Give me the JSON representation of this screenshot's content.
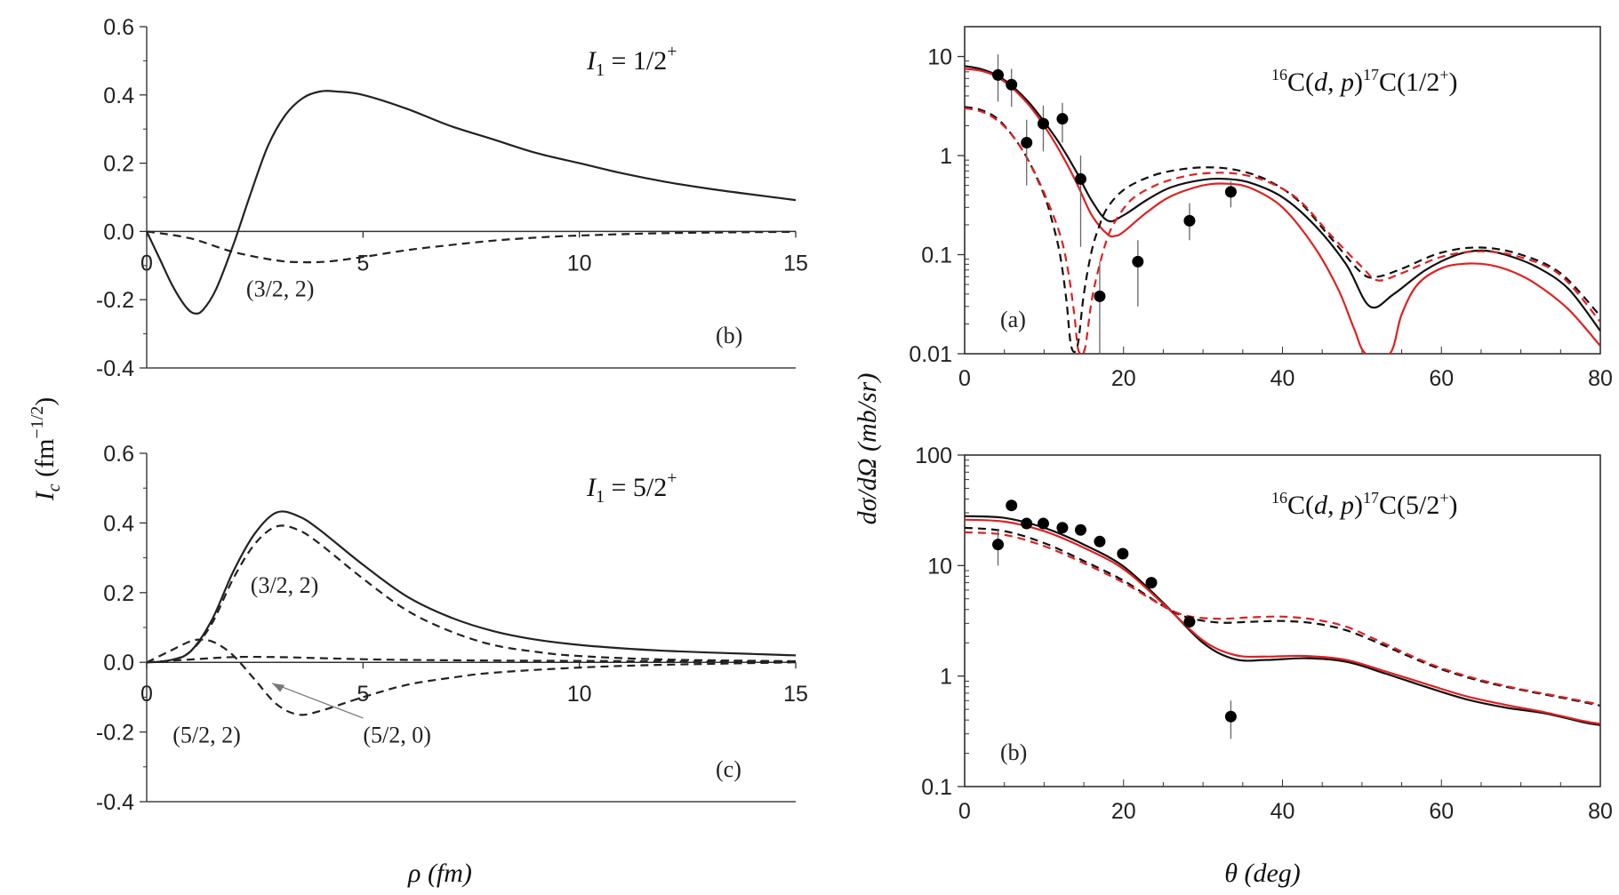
{
  "figure": {
    "left_ylabel": "I_c (fm^{-1/2})",
    "left_ylabel_main": "I",
    "left_ylabel_sub": "c",
    "left_ylabel_unit": "(fm",
    "left_ylabel_exp": "−1/2",
    "left_ylabel_close": ")",
    "left_xlabel": "ρ (fm)",
    "right_ylabel": "dσ/dΩ (mb/sr)",
    "right_xlabel": "θ (deg)"
  },
  "chart_data": [
    {
      "id": "panel-b-left",
      "type": "line",
      "panel_label": "(b)",
      "annotation_main": "I",
      "annotation_sub": "1",
      "annotation_rest": " = 1/2",
      "annotation_sup": "+",
      "xlim": [
        0,
        15
      ],
      "ylim": [
        -0.4,
        0.6
      ],
      "xticks": [
        0,
        5,
        10,
        15
      ],
      "xtick_labels": [
        "0",
        "5",
        "10",
        "15"
      ],
      "yticks": [
        -0.4,
        -0.2,
        0.0,
        0.2,
        0.4,
        0.6
      ],
      "ytick_labels": [
        "-0.4",
        "-0.2",
        "0.0",
        "0.2",
        "0.4",
        "0.6"
      ],
      "series": [
        {
          "name": "total",
          "style": "solid",
          "color": "#222222",
          "x": [
            0,
            0.3,
            0.6,
            0.9,
            1.1,
            1.3,
            1.6,
            2.0,
            2.4,
            2.8,
            3.2,
            3.6,
            4.0,
            4.4,
            5.0,
            6.0,
            7.0,
            8.0,
            9.0,
            10.0,
            11.0,
            12.0,
            13.0,
            14.0,
            15.0
          ],
          "y": [
            0.0,
            -0.08,
            -0.16,
            -0.22,
            -0.24,
            -0.23,
            -0.17,
            -0.04,
            0.11,
            0.25,
            0.34,
            0.39,
            0.41,
            0.41,
            0.4,
            0.36,
            0.31,
            0.27,
            0.23,
            0.2,
            0.17,
            0.145,
            0.125,
            0.108,
            0.092
          ]
        },
        {
          "name": "(3/2, 2)",
          "style": "dashed",
          "color": "#222222",
          "x": [
            0,
            1.0,
            2.0,
            3.0,
            3.6,
            4.2,
            5.0,
            6.0,
            7.0,
            8.0,
            9.0,
            10.0,
            12.0,
            15.0
          ],
          "y": [
            0.0,
            -0.02,
            -0.06,
            -0.085,
            -0.09,
            -0.088,
            -0.075,
            -0.055,
            -0.04,
            -0.027,
            -0.018,
            -0.012,
            -0.005,
            -0.001
          ]
        }
      ],
      "labels": [
        {
          "text": "(3/2, 2)",
          "x": 2.3,
          "y": -0.19
        }
      ]
    },
    {
      "id": "panel-c-left",
      "type": "line",
      "panel_label": "(c)",
      "annotation_main": "I",
      "annotation_sub": "1",
      "annotation_rest": " = 5/2",
      "annotation_sup": "+",
      "xlim": [
        0,
        15
      ],
      "ylim": [
        -0.4,
        0.6
      ],
      "xticks": [
        0,
        5,
        10,
        15
      ],
      "xtick_labels": [
        "0",
        "5",
        "10",
        "15"
      ],
      "yticks": [
        -0.4,
        -0.2,
        0.0,
        0.2,
        0.4,
        0.6
      ],
      "ytick_labels": [
        "-0.4",
        "-0.2",
        "0.0",
        "0.2",
        "0.4",
        "0.6"
      ],
      "series": [
        {
          "name": "total",
          "style": "solid",
          "color": "#222222",
          "x": [
            0,
            0.5,
            1.0,
            1.5,
            2.0,
            2.5,
            3.0,
            3.5,
            4.0,
            5.0,
            6.0,
            7.0,
            8.0,
            9.0,
            10.0,
            11.0,
            12.0,
            13.0,
            14.0,
            15.0
          ],
          "y": [
            0.0,
            0.005,
            0.03,
            0.12,
            0.26,
            0.37,
            0.43,
            0.42,
            0.38,
            0.28,
            0.19,
            0.13,
            0.09,
            0.065,
            0.05,
            0.04,
            0.033,
            0.028,
            0.024,
            0.02
          ]
        },
        {
          "name": "(3/2, 2)",
          "style": "dashed",
          "color": "#222222",
          "x": [
            0,
            0.5,
            1.0,
            1.5,
            2.0,
            2.5,
            3.0,
            3.5,
            4.0,
            5.0,
            6.0,
            7.0,
            8.0,
            9.0,
            10.0,
            12.0,
            15.0
          ],
          "y": [
            0.0,
            0.005,
            0.03,
            0.11,
            0.24,
            0.34,
            0.39,
            0.38,
            0.34,
            0.24,
            0.15,
            0.09,
            0.05,
            0.03,
            0.018,
            0.008,
            0.003
          ]
        },
        {
          "name": "(5/2, 2)",
          "style": "dashed",
          "color": "#222222",
          "x": [
            0,
            0.5,
            1.0,
            1.3,
            1.6,
            2.0,
            2.5,
            3.0,
            3.5,
            4.0,
            5.0,
            6.0,
            7.0,
            8.0,
            10.0,
            12.0,
            15.0
          ],
          "y": [
            0.0,
            0.03,
            0.06,
            0.065,
            0.055,
            0.02,
            -0.05,
            -0.12,
            -0.15,
            -0.14,
            -0.1,
            -0.065,
            -0.045,
            -0.03,
            -0.015,
            -0.007,
            0.0
          ]
        },
        {
          "name": "(5/2, 0)",
          "style": "dashed",
          "color": "#222222",
          "x": [
            0,
            1.0,
            2.0,
            3.0,
            4.0,
            5.0,
            6.0,
            8.0,
            10.0,
            12.0,
            15.0
          ],
          "y": [
            0.0,
            0.008,
            0.015,
            0.015,
            0.012,
            0.009,
            0.007,
            0.005,
            0.004,
            0.003,
            0.002
          ]
        }
      ],
      "labels": [
        {
          "text": "(3/2, 2)",
          "x": 2.4,
          "y": 0.2
        },
        {
          "text": "(5/2, 2)",
          "x": 0.6,
          "y": -0.23
        },
        {
          "text": "(5/2, 0)",
          "x": 5.0,
          "y": -0.23
        }
      ]
    },
    {
      "id": "panel-a-right",
      "type": "line",
      "panel_label": "(a)",
      "annotation_pre": "16",
      "annotation_mid": "C(",
      "annotation_it": "d, p",
      "annotation_mid2": ")",
      "annotation_pre2": "17",
      "annotation_end": "C(1/2",
      "annotation_sup": "+",
      "annotation_close": ")",
      "yscale": "log",
      "xlim": [
        0,
        80
      ],
      "ylim": [
        0.01,
        20
      ],
      "xticks": [
        0,
        20,
        40,
        60,
        80
      ],
      "xtick_labels": [
        "0",
        "20",
        "40",
        "60",
        "80"
      ],
      "yticks": [
        0.01,
        0.1,
        1,
        10
      ],
      "ytick_labels": [
        "0.01",
        "0.1",
        "1",
        "10"
      ],
      "series": [
        {
          "name": "black-solid",
          "style": "solid",
          "color": "#111111",
          "x": [
            0,
            2,
            4,
            6,
            8,
            10,
            12,
            14,
            16,
            18,
            20,
            23,
            26,
            30,
            33,
            36,
            40,
            44,
            48,
            51,
            54,
            58,
            62,
            65,
            68,
            72,
            76,
            80
          ],
          "y": [
            8,
            7.5,
            6.5,
            5,
            3.5,
            2.2,
            1.3,
            0.7,
            0.35,
            0.22,
            0.25,
            0.36,
            0.48,
            0.57,
            0.58,
            0.53,
            0.38,
            0.2,
            0.08,
            0.03,
            0.04,
            0.07,
            0.1,
            0.11,
            0.1,
            0.075,
            0.045,
            0.017
          ]
        },
        {
          "name": "red-solid",
          "style": "solid",
          "color": "#e02020",
          "x": [
            0,
            2,
            4,
            6,
            8,
            10,
            12,
            14,
            16,
            18,
            19,
            20,
            23,
            26,
            30,
            33,
            36,
            40,
            44,
            47,
            49,
            50.5,
            53.5,
            55,
            57,
            60,
            63,
            66,
            69,
            72,
            76,
            80
          ],
          "y": [
            7.5,
            7.2,
            6.3,
            4.8,
            3.3,
            2.0,
            1.1,
            0.55,
            0.25,
            0.16,
            0.155,
            0.17,
            0.27,
            0.39,
            0.5,
            0.52,
            0.47,
            0.3,
            0.12,
            0.045,
            0.018,
            0.01,
            0.01,
            0.025,
            0.05,
            0.073,
            0.081,
            0.079,
            0.067,
            0.05,
            0.028,
            0.012
          ]
        },
        {
          "name": "black-dashed",
          "style": "dashed",
          "color": "#111111",
          "x": [
            0,
            2,
            4,
            6,
            8,
            10,
            11,
            12,
            12.8,
            13.4,
            14.2,
            15,
            16,
            17,
            18,
            20,
            23,
            26,
            30,
            34,
            38,
            42,
            46,
            50,
            52,
            55,
            60,
            65,
            70,
            75,
            80
          ],
          "y": [
            3.1,
            2.9,
            2.4,
            1.6,
            0.9,
            0.4,
            0.22,
            0.1,
            0.035,
            0.012,
            0.012,
            0.04,
            0.11,
            0.2,
            0.3,
            0.45,
            0.6,
            0.7,
            0.76,
            0.72,
            0.57,
            0.35,
            0.15,
            0.065,
            0.06,
            0.072,
            0.105,
            0.118,
            0.1,
            0.065,
            0.024
          ]
        },
        {
          "name": "red-dashed",
          "style": "dashed",
          "color": "#e02020",
          "x": [
            0,
            2,
            4,
            6,
            8,
            10,
            12,
            13,
            13.8,
            14.3,
            15.1,
            16,
            17,
            18,
            19,
            21,
            24,
            27,
            30,
            34,
            38,
            42,
            46,
            50,
            52,
            55,
            60,
            65,
            70,
            75,
            80
          ],
          "y": [
            3.0,
            2.8,
            2.3,
            1.6,
            0.9,
            0.42,
            0.16,
            0.07,
            0.025,
            0.011,
            0.011,
            0.035,
            0.08,
            0.15,
            0.22,
            0.36,
            0.5,
            0.6,
            0.66,
            0.66,
            0.55,
            0.36,
            0.16,
            0.075,
            0.055,
            0.065,
            0.095,
            0.108,
            0.094,
            0.062,
            0.021
          ]
        },
        {
          "name": "data",
          "style": "points",
          "color": "#000000",
          "x": [
            4.2,
            5.9,
            7.8,
            9.9,
            12.3,
            14.6,
            17.0,
            21.8,
            28.3,
            33.5
          ],
          "y": [
            6.5,
            5.2,
            1.35,
            2.1,
            2.35,
            0.58,
            0.038,
            0.085,
            0.22,
            0.43
          ],
          "err_lo": [
            3.5,
            3.1,
            0.5,
            1.1,
            1.35,
            0.12,
            0.01,
            0.03,
            0.14,
            0.3
          ],
          "err_hi": [
            10.5,
            7.5,
            2.3,
            3.2,
            3.4,
            1.0,
            0.085,
            0.14,
            0.33,
            0.55
          ]
        }
      ]
    },
    {
      "id": "panel-b-right",
      "type": "line",
      "panel_label": "(b)",
      "annotation_pre": "16",
      "annotation_mid": "C(",
      "annotation_it": "d, p",
      "annotation_mid2": ")",
      "annotation_pre2": "17",
      "annotation_end": "C(5/2",
      "annotation_sup": "+",
      "annotation_close": ")",
      "yscale": "log",
      "xlim": [
        0,
        80
      ],
      "ylim": [
        0.1,
        100
      ],
      "xticks": [
        0,
        20,
        40,
        60,
        80
      ],
      "xtick_labels": [
        "0",
        "20",
        "40",
        "60",
        "80"
      ],
      "yticks": [
        0.1,
        1,
        10,
        100
      ],
      "ytick_labels": [
        "0.1",
        "1",
        "10",
        "100"
      ],
      "series": [
        {
          "name": "black-solid",
          "style": "solid",
          "color": "#111111",
          "x": [
            0,
            5,
            10,
            15,
            20,
            25,
            30,
            34,
            38,
            43,
            48,
            53,
            58,
            63,
            68,
            73,
            78,
            80
          ],
          "y": [
            28,
            27,
            22,
            15.5,
            9.8,
            4.6,
            2.0,
            1.42,
            1.4,
            1.45,
            1.35,
            1.05,
            0.8,
            0.62,
            0.52,
            0.46,
            0.38,
            0.36
          ]
        },
        {
          "name": "red-solid",
          "style": "solid",
          "color": "#e02020",
          "x": [
            0,
            5,
            10,
            15,
            20,
            25,
            30,
            34,
            38,
            43,
            48,
            53,
            58,
            63,
            68,
            73,
            78,
            80
          ],
          "y": [
            26,
            25,
            20.5,
            14.5,
            9.3,
            4.5,
            2.1,
            1.55,
            1.5,
            1.52,
            1.4,
            1.1,
            0.85,
            0.66,
            0.55,
            0.47,
            0.39,
            0.37
          ]
        },
        {
          "name": "black-dashed",
          "style": "dashed",
          "color": "#111111",
          "x": [
            0,
            5,
            10,
            15,
            20,
            25,
            28,
            32,
            36,
            40,
            44,
            48,
            52,
            56,
            60,
            65,
            70,
            75,
            80
          ],
          "y": [
            22,
            20.5,
            16,
            11,
            7.3,
            4.3,
            3.4,
            3.05,
            3.1,
            3.15,
            3.0,
            2.6,
            2.0,
            1.5,
            1.15,
            0.9,
            0.75,
            0.64,
            0.54
          ]
        },
        {
          "name": "red-dashed",
          "style": "dashed",
          "color": "#e02020",
          "x": [
            0,
            5,
            10,
            15,
            20,
            25,
            28,
            32,
            36,
            40,
            44,
            48,
            52,
            56,
            60,
            65,
            70,
            75,
            80
          ],
          "y": [
            20,
            19,
            15,
            10.5,
            7.0,
            4.3,
            3.5,
            3.3,
            3.4,
            3.45,
            3.25,
            2.8,
            2.1,
            1.55,
            1.18,
            0.92,
            0.76,
            0.65,
            0.55
          ]
        },
        {
          "name": "data",
          "style": "points",
          "color": "#000000",
          "x": [
            4.2,
            5.9,
            7.8,
            9.9,
            12.3,
            14.6,
            17.0,
            19.9,
            23.5,
            28.3,
            33.5
          ],
          "y": [
            15.5,
            35,
            24,
            24,
            22,
            21,
            16.5,
            12.8,
            7.0,
            3.1,
            0.43
          ],
          "err_lo": [
            10,
            35,
            24,
            24,
            22,
            21,
            16.5,
            12.8,
            7.0,
            3.1,
            0.27
          ],
          "err_hi": [
            21,
            35,
            24,
            24,
            22,
            21,
            16.5,
            12.8,
            7.0,
            3.1,
            0.6
          ]
        }
      ]
    }
  ]
}
